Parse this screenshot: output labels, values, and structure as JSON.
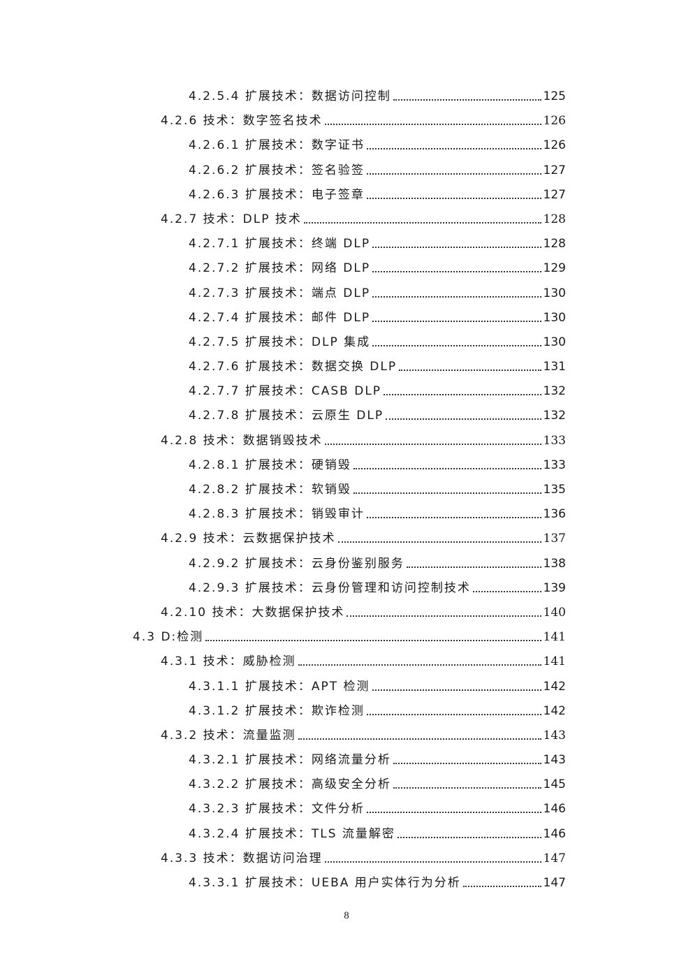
{
  "toc": [
    {
      "level": 3,
      "title": "4.2.5.4 扩展技术：数据访问控制",
      "page": "125"
    },
    {
      "level": 2,
      "title": "4.2.6 技术：数字签名技术",
      "page": "126"
    },
    {
      "level": 3,
      "title": "4.2.6.1 扩展技术：数字证书",
      "page": "126"
    },
    {
      "level": 3,
      "title": "4.2.6.2 扩展技术：签名验签",
      "page": "127"
    },
    {
      "level": 3,
      "title": "4.2.6.3 扩展技术：电子签章",
      "page": "127"
    },
    {
      "level": 2,
      "title": "4.2.7 技术：DLP 技术",
      "page": "128"
    },
    {
      "level": 3,
      "title": "4.2.7.1 扩展技术：终端 DLP",
      "page": "128"
    },
    {
      "level": 3,
      "title": "4.2.7.2 扩展技术：网络 DLP",
      "page": "129"
    },
    {
      "level": 3,
      "title": "4.2.7.3 扩展技术：端点 DLP",
      "page": "130"
    },
    {
      "level": 3,
      "title": "4.2.7.4 扩展技术：邮件 DLP",
      "page": "130"
    },
    {
      "level": 3,
      "title": "4.2.7.5 扩展技术：DLP 集成",
      "page": "130"
    },
    {
      "level": 3,
      "title": "4.2.7.6 扩展技术：数据交换 DLP",
      "page": "131"
    },
    {
      "level": 3,
      "title": "4.2.7.7 扩展技术：CASB DLP",
      "page": "132"
    },
    {
      "level": 3,
      "title": "4.2.7.8 扩展技术：云原生 DLP",
      "page": "132"
    },
    {
      "level": 2,
      "title": "4.2.8 技术：数据销毁技术",
      "page": "133"
    },
    {
      "level": 3,
      "title": "4.2.8.1 扩展技术：硬销毁",
      "page": "133"
    },
    {
      "level": 3,
      "title": "4.2.8.2 扩展技术：软销毁",
      "page": "135"
    },
    {
      "level": 3,
      "title": "4.2.8.3 扩展技术：销毁审计",
      "page": "136"
    },
    {
      "level": 2,
      "title": "4.2.9 技术：云数据保护技术",
      "page": "137"
    },
    {
      "level": 3,
      "title": "4.2.9.2 扩展技术：云身份鉴别服务",
      "page": "138"
    },
    {
      "level": 3,
      "title": "4.2.9.3 扩展技术：云身份管理和访问控制技术",
      "page": "139"
    },
    {
      "level": 2,
      "title": "4.2.10 技术：大数据保护技术",
      "page": "140"
    },
    {
      "level": 1,
      "title": "4.3 D:检测",
      "page": "141"
    },
    {
      "level": 2,
      "title": "4.3.1 技术：威胁检测",
      "page": "141"
    },
    {
      "level": 3,
      "title": "4.3.1.1 扩展技术：APT 检测",
      "page": "142"
    },
    {
      "level": 3,
      "title": "4.3.1.2 扩展技术：欺诈检测",
      "page": "142"
    },
    {
      "level": 2,
      "title": "4.3.2 技术：流量监测",
      "page": "143"
    },
    {
      "level": 3,
      "title": "4.3.2.1 扩展技术：网络流量分析",
      "page": "143"
    },
    {
      "level": 3,
      "title": "4.3.2.2 扩展技术：高级安全分析",
      "page": "145"
    },
    {
      "level": 3,
      "title": "4.3.2.3 扩展技术：文件分析",
      "page": "146"
    },
    {
      "level": 3,
      "title": "4.3.2.4 扩展技术：TLS 流量解密",
      "page": "146"
    },
    {
      "level": 2,
      "title": "4.3.3 技术：数据访问治理",
      "page": "147"
    },
    {
      "level": 3,
      "title": "4.3.3.1 扩展技术：UEBA 用户实体行为分析",
      "page": "147"
    }
  ],
  "footer": {
    "page_number": "8"
  }
}
